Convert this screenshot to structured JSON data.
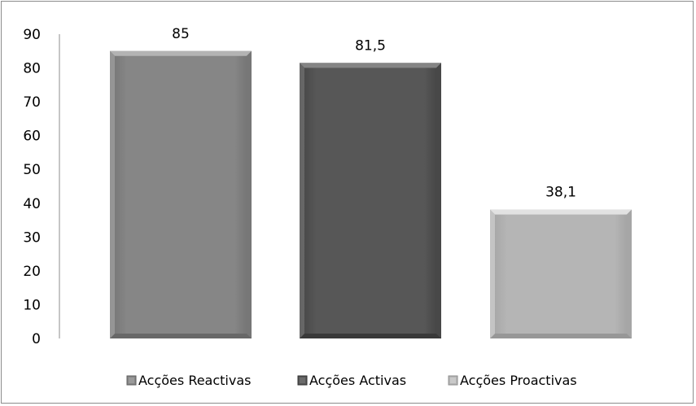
{
  "chart_data": {
    "type": "bar",
    "categories": [
      "Acções Reactivas",
      "Acções Activas",
      "Acções Proactivas"
    ],
    "values": [
      85,
      81.5,
      38.1
    ],
    "value_labels": [
      "85",
      "81,5",
      "38,1"
    ],
    "ylim": [
      0,
      90
    ],
    "yticks": [
      "0",
      "10",
      "20",
      "30",
      "40",
      "50",
      "60",
      "70",
      "80",
      "90"
    ],
    "grid": false,
    "legend_position": "bottom",
    "colors": [
      "#868686",
      "#575757",
      "#b5b5b5"
    ]
  }
}
